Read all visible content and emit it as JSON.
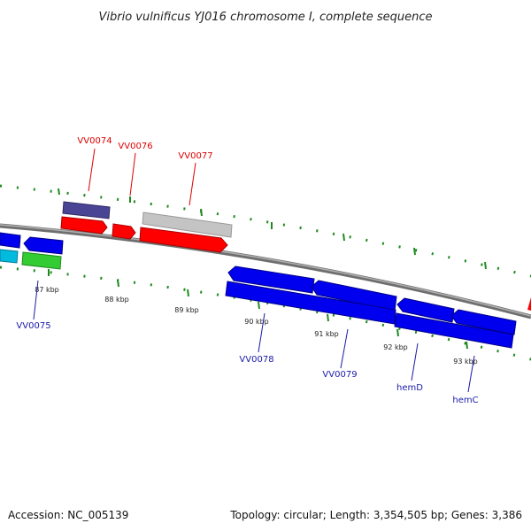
{
  "title": "Vibrio vulnificus YJ016 chromosome I, complete sequence",
  "footer": {
    "accession": "Accession: NC_005139",
    "topology": "Topology: circular; Length: 3,354,505 bp; Genes: 3,386"
  },
  "colors": {
    "backbone": "#8a8a8a",
    "tick_green": "#1f8a1f",
    "red_gene": "#ff0000",
    "blue_gene": "#0000ee",
    "gray_gene": "#c0c0c0",
    "purple_gene": "#4a4494",
    "green_gene": "#33cc33",
    "label_red": "#dd0000",
    "label_blue": "#1a1aaa"
  },
  "scale_labels": [
    "87 kbp",
    "88 kbp",
    "89 kbp",
    "90 kbp",
    "91 kbp",
    "92 kbp",
    "93 kbp"
  ],
  "genes": {
    "top": [
      "VV0074",
      "VV0076",
      "VV0077"
    ],
    "bottom": [
      "VV0075",
      "VV0078",
      "VV0079",
      "hemD",
      "hemC"
    ]
  }
}
